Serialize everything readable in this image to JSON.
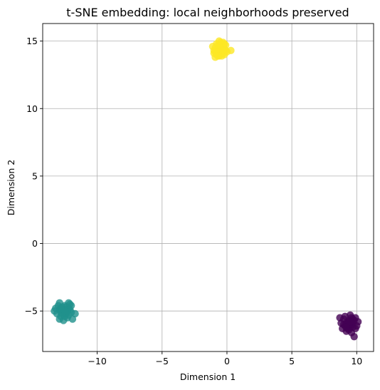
{
  "chart_data": {
    "type": "scatter",
    "title": "t-SNE embedding: local neighborhoods preserved",
    "xlabel": "Dimension 1",
    "ylabel": "Dimension 2",
    "xlim": [
      -14.2,
      11.3
    ],
    "ylim": [
      -8.0,
      16.3
    ],
    "xticks": [
      -10,
      -5,
      0,
      5,
      10
    ],
    "yticks": [
      -5,
      0,
      5,
      10,
      15
    ],
    "xtick_labels": [
      "−10",
      "−5",
      "0",
      "5",
      "10"
    ],
    "ytick_labels": [
      "−5",
      "0",
      "5",
      "10",
      "15"
    ],
    "grid": true,
    "series": [
      {
        "color": "#fde725",
        "alpha": 0.8,
        "points": [
          [
            -0.6,
            14.4
          ],
          [
            -0.4,
            14.6
          ],
          [
            -0.8,
            14.2
          ],
          [
            -0.3,
            14.1
          ],
          [
            -0.5,
            14.9
          ],
          [
            -0.7,
            14.7
          ],
          [
            -0.9,
            14.5
          ],
          [
            -0.2,
            14.4
          ],
          [
            -0.6,
            13.9
          ],
          [
            -0.4,
            14.3
          ],
          [
            -1.0,
            14.3
          ],
          [
            -0.1,
            14.7
          ],
          [
            0.0,
            14.2
          ],
          [
            -0.5,
            14.0
          ],
          [
            -0.8,
            14.8
          ],
          [
            -0.3,
            14.9
          ],
          [
            -0.6,
            15.0
          ],
          [
            -1.0,
            14.1
          ],
          [
            -0.9,
            13.8
          ],
          [
            -0.4,
            13.9
          ],
          [
            0.3,
            14.3
          ],
          [
            -0.2,
            14.0
          ],
          [
            -0.7,
            14.4
          ],
          [
            -0.5,
            14.5
          ],
          [
            -0.3,
            14.6
          ],
          [
            -0.8,
            14.0
          ],
          [
            -0.6,
            14.6
          ],
          [
            -0.4,
            14.8
          ],
          [
            -1.1,
            14.6
          ],
          [
            -0.2,
            14.8
          ],
          [
            -0.9,
            14.2
          ],
          [
            -0.1,
            14.3
          ],
          [
            -0.6,
            14.2
          ],
          [
            -0.3,
            14.3
          ],
          [
            -0.7,
            13.9
          ],
          [
            -0.5,
            14.7
          ]
        ]
      },
      {
        "color": "#21918c",
        "alpha": 0.8,
        "points": [
          [
            -12.6,
            -5.0
          ],
          [
            -12.4,
            -5.2
          ],
          [
            -12.9,
            -4.9
          ],
          [
            -12.2,
            -4.8
          ],
          [
            -12.8,
            -5.4
          ],
          [
            -12.5,
            -4.6
          ],
          [
            -13.1,
            -5.2
          ],
          [
            -12.3,
            -5.5
          ],
          [
            -12.0,
            -5.1
          ],
          [
            -12.7,
            -4.7
          ],
          [
            -13.3,
            -5.0
          ],
          [
            -12.1,
            -4.5
          ],
          [
            -12.6,
            -5.7
          ],
          [
            -12.9,
            -4.4
          ],
          [
            -12.4,
            -4.7
          ],
          [
            -11.7,
            -5.2
          ],
          [
            -13.0,
            -4.6
          ],
          [
            -12.2,
            -5.3
          ],
          [
            -12.8,
            -5.1
          ],
          [
            -12.5,
            -5.4
          ],
          [
            -12.1,
            -4.9
          ],
          [
            -12.7,
            -5.2
          ],
          [
            -12.4,
            -4.9
          ],
          [
            -13.2,
            -4.8
          ],
          [
            -12.3,
            -5.0
          ],
          [
            -12.0,
            -4.6
          ],
          [
            -12.6,
            -4.9
          ],
          [
            -12.9,
            -5.6
          ],
          [
            -11.9,
            -5.6
          ],
          [
            -12.5,
            -5.0
          ],
          [
            -12.2,
            -4.4
          ],
          [
            -12.8,
            -4.8
          ]
        ]
      },
      {
        "color": "#440154",
        "alpha": 0.8,
        "points": [
          [
            9.5,
            -6.0
          ],
          [
            9.3,
            -5.8
          ],
          [
            9.7,
            -6.2
          ],
          [
            9.1,
            -6.1
          ],
          [
            9.8,
            -5.7
          ],
          [
            9.4,
            -6.4
          ],
          [
            9.0,
            -5.6
          ],
          [
            9.6,
            -5.5
          ],
          [
            10.0,
            -6.1
          ],
          [
            9.2,
            -6.5
          ],
          [
            9.9,
            -6.3
          ],
          [
            8.8,
            -5.9
          ],
          [
            9.5,
            -5.3
          ],
          [
            9.3,
            -6.1
          ],
          [
            9.7,
            -5.9
          ],
          [
            8.9,
            -6.3
          ],
          [
            10.1,
            -5.8
          ],
          [
            9.6,
            -6.6
          ],
          [
            9.4,
            -5.7
          ],
          [
            9.8,
            -6.9
          ],
          [
            9.1,
            -5.4
          ],
          [
            9.5,
            -6.2
          ],
          [
            9.2,
            -5.9
          ],
          [
            9.6,
            -6.0
          ],
          [
            8.7,
            -5.5
          ],
          [
            9.3,
            -6.3
          ],
          [
            9.9,
            -5.5
          ],
          [
            9.4,
            -6.0
          ],
          [
            9.0,
            -6.0
          ],
          [
            9.7,
            -5.6
          ],
          [
            9.5,
            -5.8
          ],
          [
            9.2,
            -6.2
          ]
        ]
      }
    ]
  }
}
